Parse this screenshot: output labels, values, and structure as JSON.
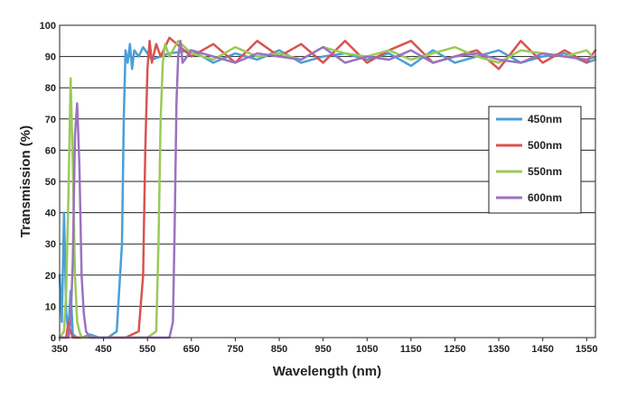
{
  "chart_data": {
    "type": "line",
    "xlabel": "Wavelength (nm)",
    "ylabel": "Transmission (%)",
    "xlim": [
      350,
      1570
    ],
    "ylim": [
      0,
      100
    ],
    "x_ticks": [
      350,
      450,
      550,
      650,
      750,
      850,
      950,
      1050,
      1150,
      1250,
      1350,
      1450,
      1550
    ],
    "y_ticks": [
      0,
      10,
      20,
      30,
      40,
      50,
      60,
      70,
      80,
      90,
      100
    ],
    "grid": "horizontal",
    "legend_position": "right",
    "series": [
      {
        "name": "450nm",
        "color": "#4a9fd8",
        "x": [
          350,
          355,
          360,
          365,
          370,
          375,
          380,
          390,
          400,
          420,
          440,
          460,
          480,
          492,
          496,
          500,
          505,
          510,
          515,
          520,
          530,
          540,
          560,
          600,
          650,
          700,
          750,
          800,
          850,
          900,
          950,
          1000,
          1050,
          1100,
          1150,
          1200,
          1250,
          1300,
          1350,
          1400,
          1450,
          1500,
          1550,
          1570
        ],
        "y": [
          20,
          5,
          40,
          8,
          2,
          15,
          1,
          0,
          0,
          1,
          0,
          0,
          2,
          30,
          70,
          92,
          88,
          94,
          86,
          92,
          90,
          93,
          89,
          91,
          92,
          88,
          91,
          89,
          92,
          88,
          90,
          91,
          89,
          91,
          87,
          92,
          88,
          90,
          92,
          88,
          90,
          91,
          88,
          89
        ]
      },
      {
        "name": "500nm",
        "color": "#d9534f",
        "x": [
          350,
          365,
          370,
          375,
          380,
          390,
          400,
          450,
          500,
          530,
          540,
          545,
          550,
          555,
          560,
          570,
          580,
          600,
          650,
          700,
          750,
          800,
          850,
          900,
          950,
          1000,
          1050,
          1100,
          1150,
          1200,
          1250,
          1300,
          1350,
          1400,
          1450,
          1500,
          1550,
          1570
        ],
        "y": [
          0,
          0,
          5,
          2,
          0,
          0,
          0,
          0,
          0,
          2,
          20,
          60,
          86,
          95,
          88,
          94,
          90,
          96,
          90,
          94,
          88,
          95,
          90,
          94,
          88,
          95,
          88,
          92,
          95,
          88,
          90,
          92,
          86,
          95,
          88,
          92,
          88,
          92
        ]
      },
      {
        "name": "550nm",
        "color": "#9cc95a",
        "x": [
          350,
          360,
          365,
          370,
          375,
          380,
          385,
          390,
          395,
          400,
          420,
          450,
          500,
          550,
          570,
          575,
          580,
          585,
          590,
          600,
          620,
          650,
          700,
          750,
          800,
          850,
          900,
          950,
          1000,
          1050,
          1100,
          1150,
          1200,
          1250,
          1300,
          1350,
          1400,
          1450,
          1500,
          1550,
          1570
        ],
        "y": [
          0,
          2,
          15,
          45,
          83,
          55,
          20,
          5,
          2,
          0,
          0,
          0,
          0,
          0,
          2,
          30,
          70,
          88,
          94,
          90,
          95,
          91,
          89,
          93,
          90,
          91,
          89,
          93,
          91,
          90,
          92,
          89,
          91,
          93,
          90,
          88,
          92,
          91,
          90,
          92,
          89
        ]
      },
      {
        "name": "600nm",
        "color": "#9b72c0",
        "x": [
          350,
          370,
          375,
          380,
          385,
          390,
          395,
          400,
          405,
          410,
          420,
          450,
          500,
          550,
          600,
          608,
          612,
          616,
          620,
          625,
          630,
          650,
          700,
          750,
          800,
          850,
          900,
          950,
          1000,
          1050,
          1100,
          1150,
          1200,
          1250,
          1300,
          1350,
          1400,
          1450,
          1500,
          1550,
          1570
        ],
        "y": [
          0,
          0,
          5,
          25,
          65,
          75,
          55,
          20,
          8,
          2,
          0,
          0,
          0,
          0,
          0,
          5,
          35,
          75,
          90,
          95,
          88,
          92,
          90,
          88,
          91,
          90,
          89,
          93,
          88,
          90,
          89,
          92,
          88,
          90,
          91,
          89,
          88,
          91,
          90,
          89,
          90
        ]
      }
    ]
  }
}
